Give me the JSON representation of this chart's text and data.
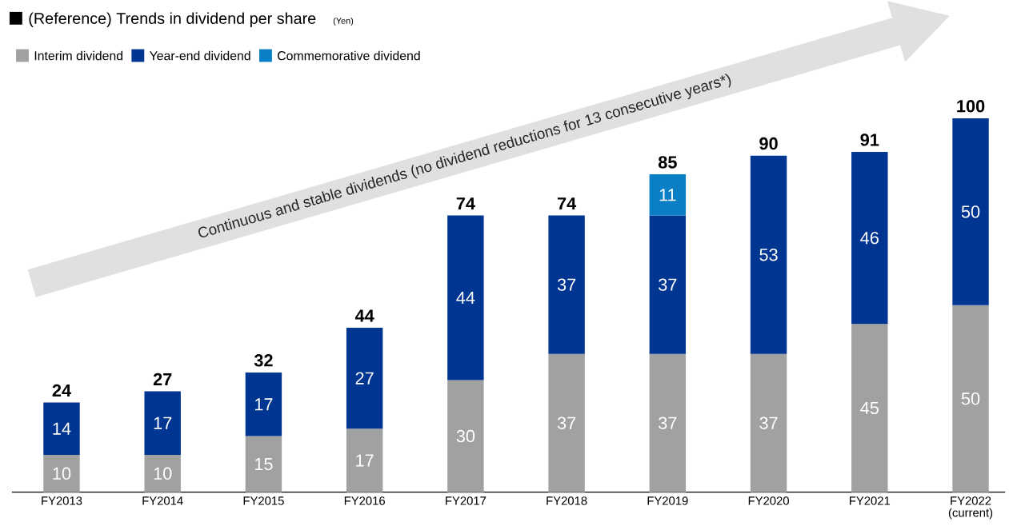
{
  "chart_data": {
    "type": "bar",
    "title": "(Reference) Trends in dividend per share",
    "subtitle": "(Yen)",
    "categories": [
      "FY2013",
      "FY2014",
      "FY2015",
      "FY2016",
      "FY2017",
      "FY2018",
      "FY2019",
      "FY2020",
      "FY2021",
      "FY2022 (current)"
    ],
    "stacked": true,
    "series": [
      {
        "name": "Interim dividend",
        "color": "#a0a2a2",
        "values": [
          10,
          10,
          15,
          17,
          30,
          37,
          37,
          37,
          45,
          50
        ]
      },
      {
        "name": "Year-end dividend",
        "color": "#003591",
        "values": [
          14,
          17,
          17,
          27,
          44,
          37,
          37,
          53,
          46,
          50
        ]
      },
      {
        "name": "Commemorative dividend",
        "color": "#0a7fc6",
        "values": [
          null,
          null,
          null,
          null,
          null,
          null,
          11,
          null,
          null,
          null
        ]
      }
    ],
    "data_labels": true,
    "totals": [
      "24",
      "27",
      "32",
      "44",
      "74",
      "74",
      "85",
      "90",
      "91",
      "100"
    ],
    "legend": "top left",
    "annotations": [
      "Continuous and stable dividends (no dividend reductions for 13 consecutive years*)"
    ]
  }
}
